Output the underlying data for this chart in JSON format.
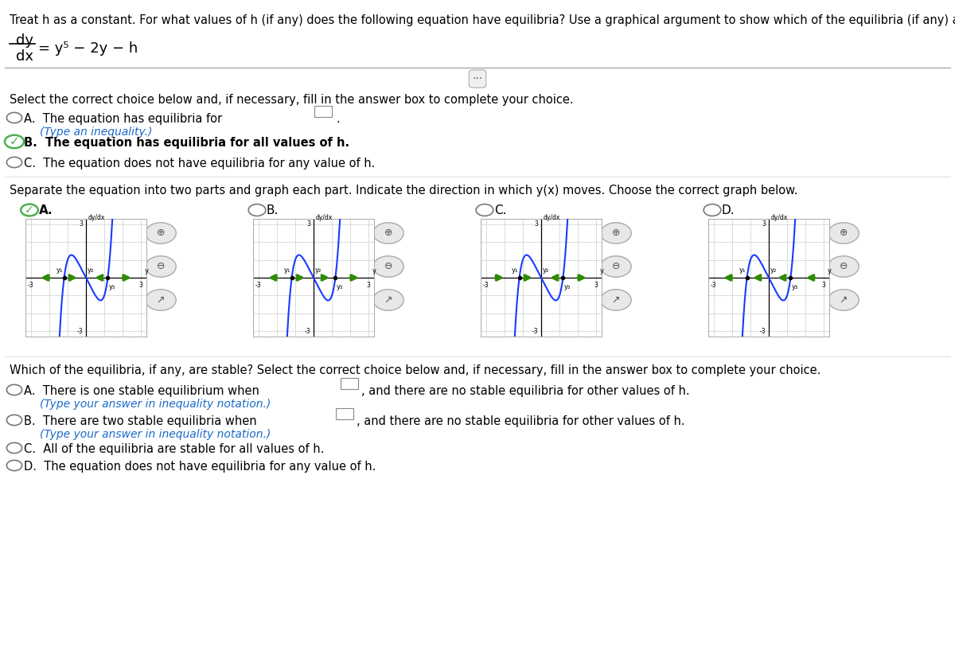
{
  "title_text": "Treat h as a constant. For what values of h (if any) does the following equation have equilibria? Use a graphical argument to show which of the equilibria (if any) are stable.",
  "question1_text": "Select the correct choice below and, if necessary, fill in the answer box to complete your choice.",
  "choice_B1": "B.   The equation has equilibria for all values of h.",
  "choice_C1": "C.   The equation does not have equilibria for any value of h.",
  "question2_text": "Separate the equation into two parts and graph each part. Indicate the direction in which y(x) moves. Choose the correct graph below.",
  "graph_labels": [
    "A.",
    "B.",
    "C.",
    "D."
  ],
  "question3_text": "Which of the equilibria, if any, are stable? Select the correct choice below and, if necessary, fill in the answer box to complete your choice.",
  "choice_C3": "C.   All of the equilibria are stable for all values of h.",
  "choice_D3": "D.   The equation does not have equilibria for any value of h.",
  "bg_color": "#ffffff",
  "graph_line_color": "#1a3aff",
  "arrow_color": "#2e8b00",
  "grid_color": "#cccccc"
}
